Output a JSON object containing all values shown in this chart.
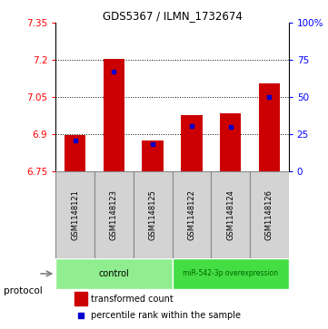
{
  "title": "GDS5367 / ILMN_1732674",
  "samples": [
    "GSM1148121",
    "GSM1148123",
    "GSM1148125",
    "GSM1148122",
    "GSM1148124",
    "GSM1148126"
  ],
  "groups": [
    "control",
    "control",
    "control",
    "miR-542-3p overexpression",
    "miR-542-3p overexpression",
    "miR-542-3p overexpression"
  ],
  "transformed_count": [
    6.895,
    7.205,
    6.875,
    6.975,
    6.985,
    7.105
  ],
  "percentile_rank": [
    20.5,
    67.0,
    18.5,
    30.5,
    30.0,
    50.0
  ],
  "ylim_left": [
    6.75,
    7.35
  ],
  "ylim_right": [
    0,
    100
  ],
  "yticks_left": [
    6.75,
    6.9,
    7.05,
    7.2,
    7.35
  ],
  "ytick_labels_left": [
    "6.75",
    "6.9",
    "7.05",
    "7.2",
    "7.35"
  ],
  "yticks_right": [
    0,
    25,
    50,
    75,
    100
  ],
  "ytick_labels_right": [
    "0",
    "25",
    "50",
    "75",
    "100%"
  ],
  "bar_bottom": 6.75,
  "bar_color": "#cc0000",
  "blue_marker_color": "#0000cc",
  "control_color": "#90ee90",
  "overexp_color": "#44dd44",
  "legend_red_label": "transformed count",
  "legend_blue_label": "percentile rank within the sample",
  "bar_width": 0.55,
  "protocol_label": "protocol",
  "dotted_gridline_color": "#000000",
  "background_color": "#ffffff",
  "cell_border_color": "#888888",
  "cell_bg_color": "#d3d3d3"
}
